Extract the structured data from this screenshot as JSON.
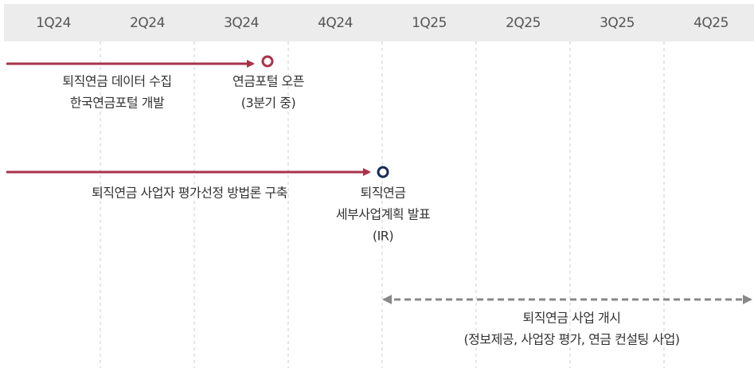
{
  "quarters": [
    "1Q24",
    "2Q24",
    "3Q24",
    "4Q24",
    "1Q25",
    "2Q25",
    "3Q25",
    "4Q25"
  ],
  "events": [
    {
      "lines": [
        "퇴직연금 데이터 수집",
        "한국연금포털 개발"
      ]
    },
    {
      "lines": [
        "연금포털 오픈",
        "(3분기 중)"
      ]
    },
    {
      "lines": [
        "퇴직연금 사업자 평가선정 방법론 구축"
      ]
    },
    {
      "lines": [
        "퇴직연금",
        "세부사업계획 발표",
        "(IR)"
      ]
    },
    {
      "lines": [
        "퇴직연금 사업 개시",
        "(정보제공, 사업장 평가, 연금 컨설팅 사업)"
      ]
    }
  ]
}
